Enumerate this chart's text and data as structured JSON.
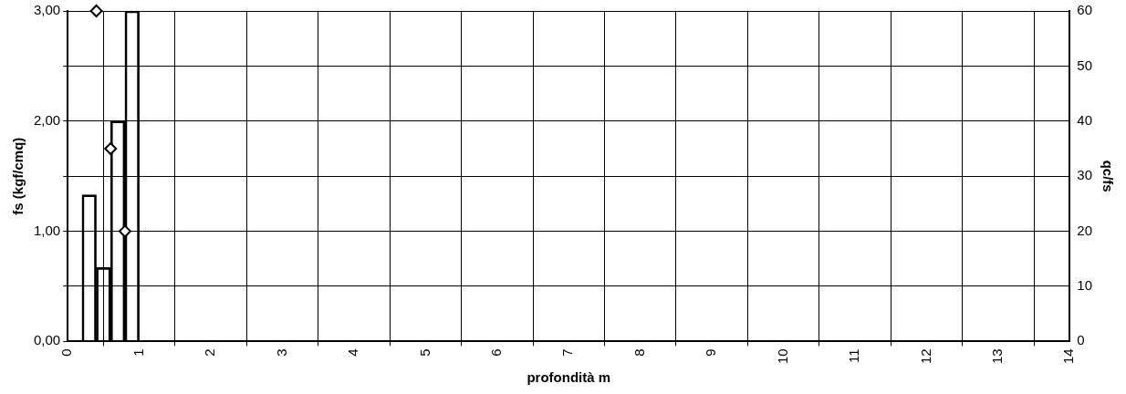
{
  "chart_data": {
    "type": "bar",
    "xlabel": "profondità m",
    "ylabel": "fs (kgf/cmq)",
    "y2label": "qc/fs",
    "xlim": [
      0,
      14
    ],
    "xticks": [
      0,
      1,
      2,
      3,
      4,
      5,
      6,
      7,
      8,
      9,
      10,
      11,
      12,
      13,
      14
    ],
    "ylim": [
      0,
      3
    ],
    "yticks": [
      {
        "value": 0,
        "label": "0,00"
      },
      {
        "value": 0.5,
        "label": null
      },
      {
        "value": 1,
        "label": "1,00"
      },
      {
        "value": 1.5,
        "label": null
      },
      {
        "value": 2,
        "label": "2,00"
      },
      {
        "value": 2.5,
        "label": null
      },
      {
        "value": 3,
        "label": "3,00"
      }
    ],
    "y2lim": [
      0,
      60
    ],
    "y2ticks": [
      0,
      10,
      20,
      30,
      40,
      50,
      60
    ],
    "grid": true,
    "legend": false,
    "x": [
      0.3,
      0.5,
      0.7,
      0.9
    ],
    "values": [
      1.33,
      0.67,
      2.0,
      3.0
    ],
    "color": "#000000",
    "series": [
      {
        "type": "scatter",
        "axis": "y2",
        "marker": "diamond",
        "color": "#000000",
        "x": [
          0.4,
          0.6,
          0.8
        ],
        "values": [
          60,
          35,
          20
        ]
      }
    ]
  }
}
